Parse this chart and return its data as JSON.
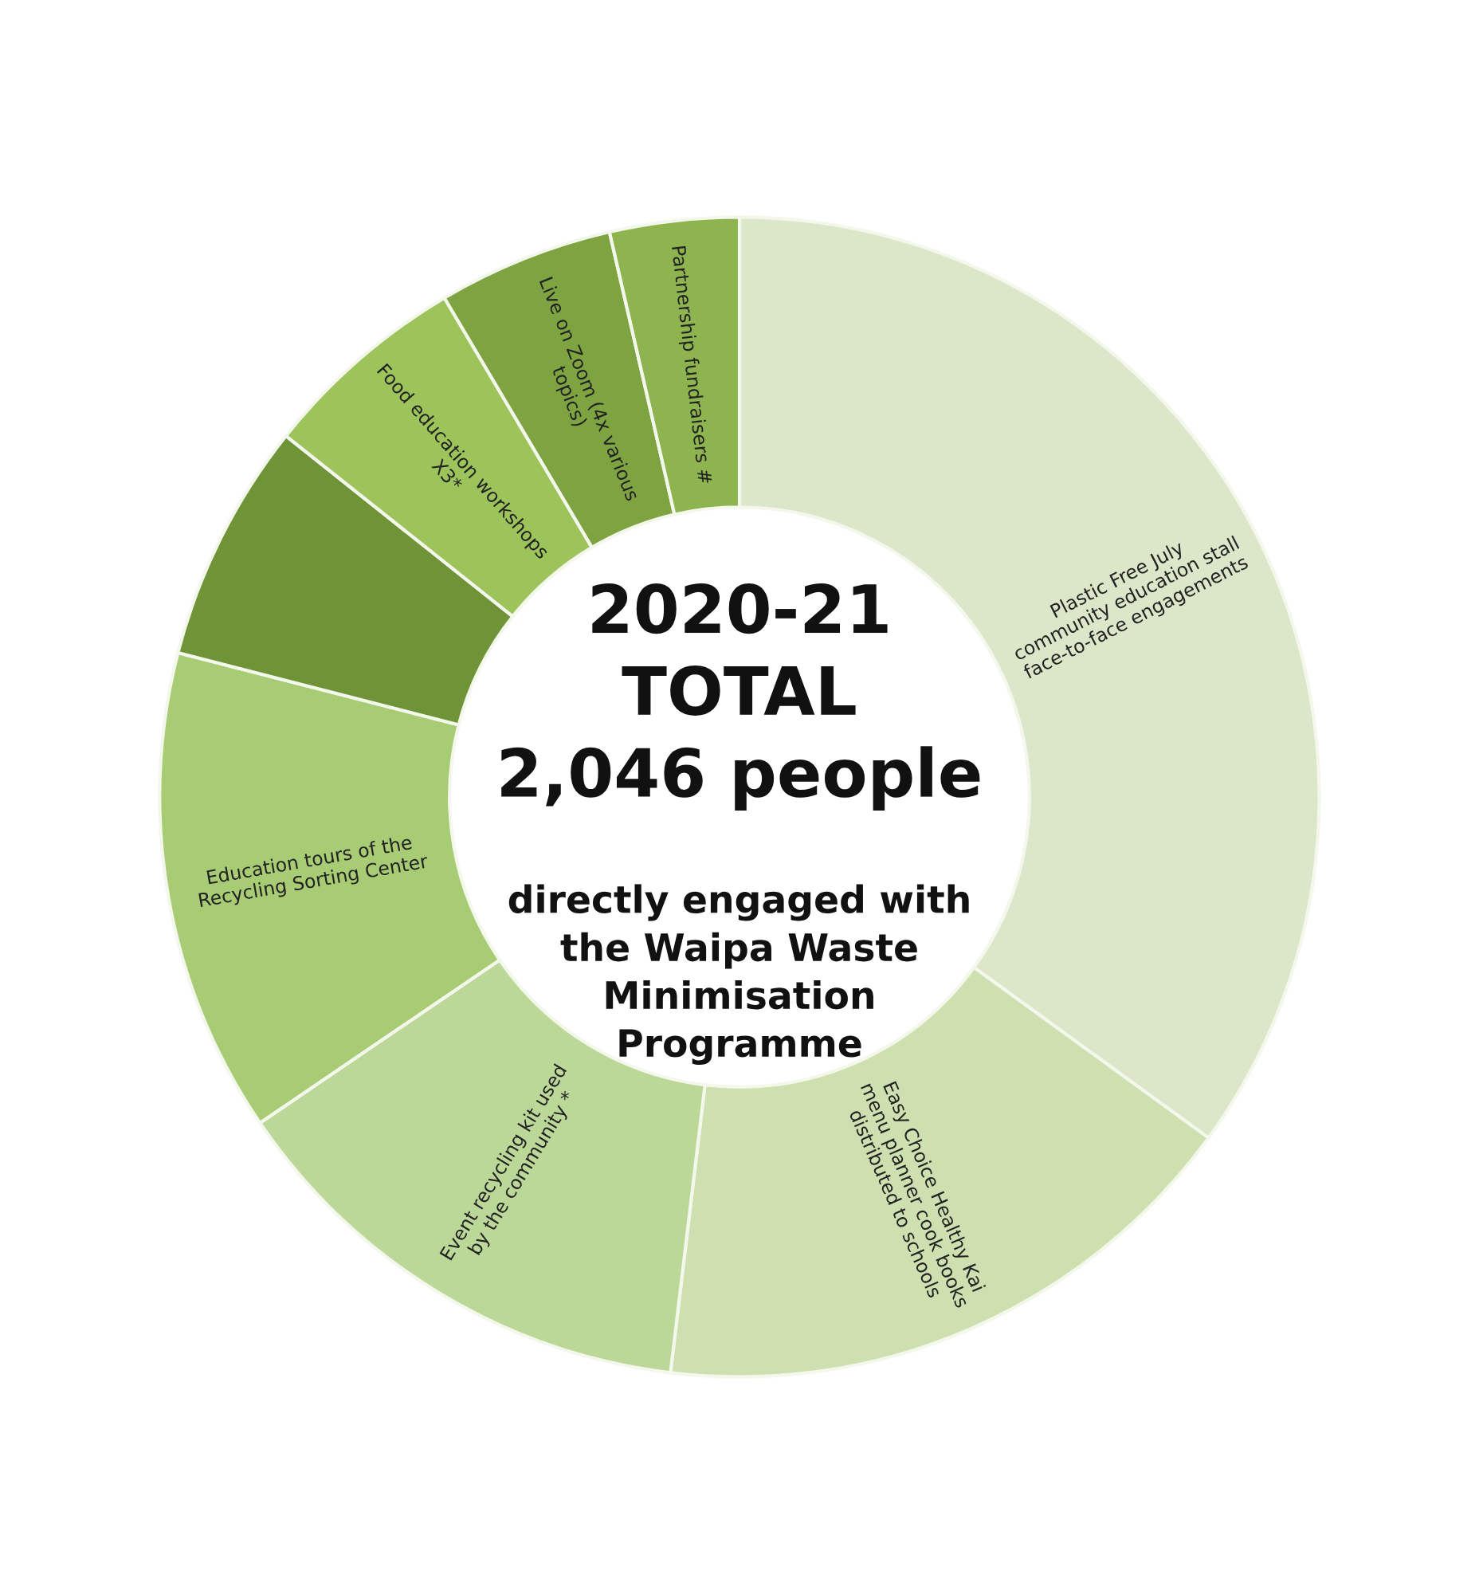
{
  "chart_data": {
    "type": "donut",
    "title": "2020-21\nTOTAL\n2,046 people",
    "subtitle": "directly engaged with the Waipa Waste Minimisation Programme",
    "categories": [
      "Plastic Free July community education stall face-to-face engagements",
      "Easy Choice Healthy Kai menu planner cook books distributed to schools",
      "Event recycling kit used by the community *",
      "Education tours of the Recycling Sorting Center",
      null,
      "Food education workshops X3*",
      "Live on Zoom (4x various topics)",
      "Partnership fundraisers #"
    ],
    "values": [
      35.0,
      16.9,
      13.6,
      13.5,
      6.7,
      5.8,
      4.9,
      3.6
    ],
    "colors": [
      "#dce6c8",
      "#cfe0b0",
      "#bcd898",
      "#a8cc74",
      "#6f9438",
      "#9cc45a",
      "#7ea442",
      "#8db44e"
    ],
    "legend": false
  }
}
